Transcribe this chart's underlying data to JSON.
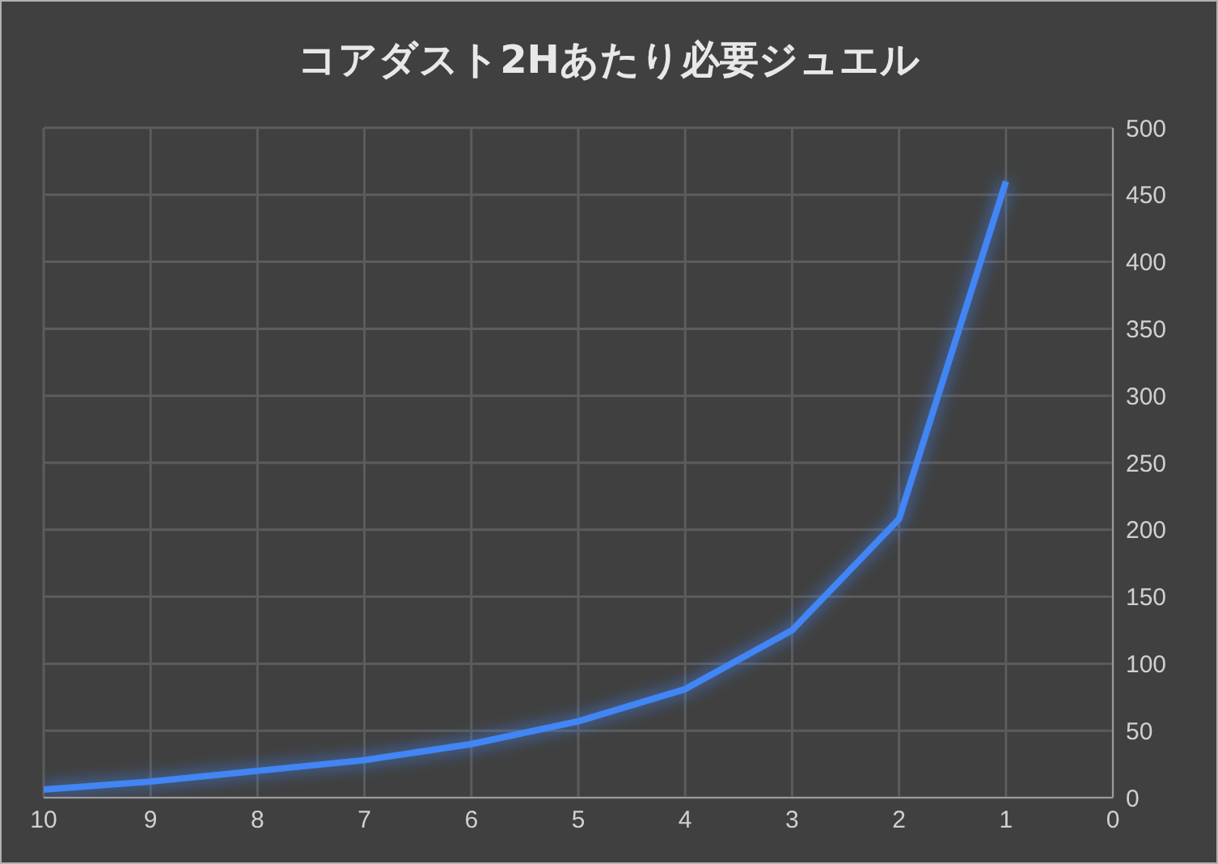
{
  "chart_data": {
    "type": "line",
    "title": "コアダスト2Hあたり必要ジュエル",
    "x": [
      10,
      9,
      8,
      7,
      6,
      5,
      4,
      3,
      2,
      1
    ],
    "series": [
      {
        "color": "#4285f4",
        "values": [
          6,
          12,
          20,
          28,
          40,
          57,
          81,
          125,
          208,
          460
        ]
      }
    ],
    "xlim": [
      10,
      0
    ],
    "xticks": [
      10,
      9,
      8,
      7,
      6,
      5,
      4,
      3,
      2,
      1,
      0
    ],
    "ylim": [
      0,
      500
    ],
    "yticks": [
      0,
      50,
      100,
      150,
      200,
      250,
      300,
      350,
      400,
      450,
      500
    ],
    "grid": true,
    "legend": false,
    "marker": "none",
    "line_style": "solid"
  }
}
